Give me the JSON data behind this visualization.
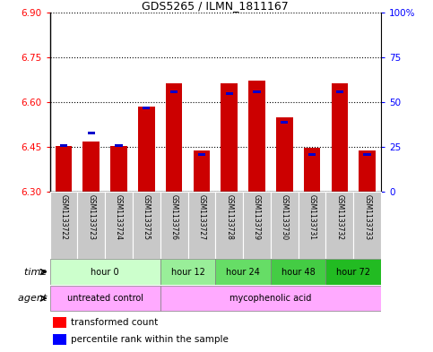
{
  "title": "GDS5265 / ILMN_1811167",
  "samples": [
    "GSM1133722",
    "GSM1133723",
    "GSM1133724",
    "GSM1133725",
    "GSM1133726",
    "GSM1133727",
    "GSM1133728",
    "GSM1133729",
    "GSM1133730",
    "GSM1133731",
    "GSM1133732",
    "GSM1133733"
  ],
  "transformed_count": [
    6.454,
    6.468,
    6.453,
    6.586,
    6.664,
    6.439,
    6.663,
    6.673,
    6.548,
    6.447,
    6.664,
    6.438
  ],
  "percentile_rank": [
    25,
    32,
    25,
    46,
    55,
    20,
    54,
    55,
    38,
    20,
    55,
    20
  ],
  "ymin": 6.3,
  "ymax": 6.9,
  "y_ticks": [
    6.3,
    6.45,
    6.6,
    6.75,
    6.9
  ],
  "y_right_ticks": [
    0,
    25,
    50,
    75,
    100
  ],
  "y_right_labels": [
    "0",
    "25",
    "50",
    "75",
    "100%"
  ],
  "bar_color": "#CC0000",
  "percentile_color": "#0000CC",
  "time_colors": [
    "#ccffcc",
    "#99ee99",
    "#66dd66",
    "#44cc44",
    "#22bb22"
  ],
  "time_groups": [
    {
      "label": "hour 0",
      "start": 0,
      "end": 3
    },
    {
      "label": "hour 12",
      "start": 4,
      "end": 5
    },
    {
      "label": "hour 24",
      "start": 6,
      "end": 7
    },
    {
      "label": "hour 48",
      "start": 8,
      "end": 9
    },
    {
      "label": "hour 72",
      "start": 10,
      "end": 11
    }
  ],
  "agent_groups": [
    {
      "label": "untreated control",
      "start": 0,
      "end": 3,
      "color": "#ffaaff"
    },
    {
      "label": "mycophenolic acid",
      "start": 4,
      "end": 11,
      "color": "#ffaaff"
    }
  ],
  "legend_red": "transformed count",
  "legend_blue": "percentile rank within the sample",
  "sample_label_color": "#C8C8C8"
}
